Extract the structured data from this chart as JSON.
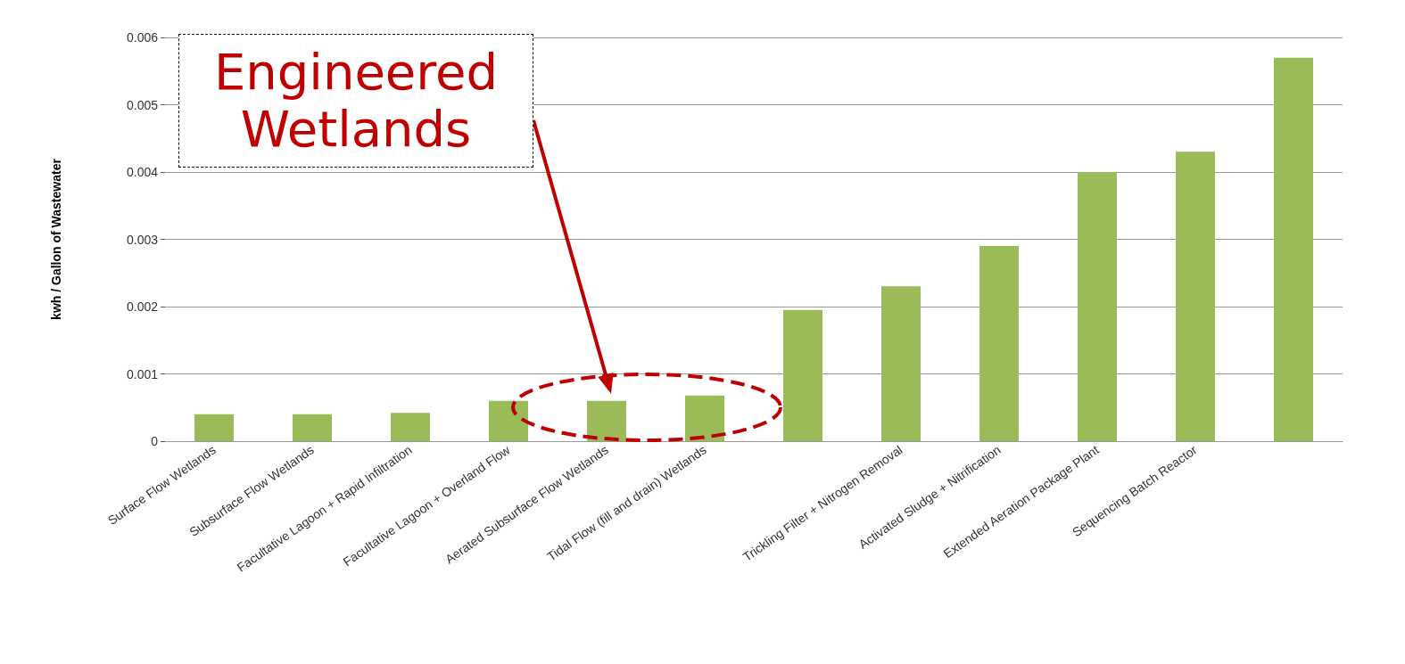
{
  "chart_data": {
    "type": "bar",
    "ylabel": "kwh / Gallon of Wastewater",
    "categories": [
      "Surface Flow Wetlands",
      "Subsurface Flow Wetlands",
      "Facultative Lagoon + Rapid Infiltration",
      "Facultative Lagoon + Overland Flow",
      "Aerated Subsurface Flow Wetlands",
      "Tidal Flow (fill and drain) Wetlands",
      null,
      "Trickling Filter + Nitrogen Removal",
      "Activated Sludge + Nitrification",
      "Extended Aeration Package Plant",
      "Sequencing Batch Reactor",
      null
    ],
    "values": [
      0.0004,
      0.0004,
      0.00042,
      0.0006,
      0.0006,
      0.00068,
      0.00195,
      0.0023,
      0.0029,
      0.004,
      0.0043,
      0.0057
    ],
    "color": "#9bbb59",
    "ylim": [
      0,
      0.006
    ],
    "yticks": [
      0,
      0.001,
      0.002,
      0.003,
      0.004,
      0.005,
      0.006
    ],
    "grid": "y",
    "annotations": [
      "Engineered Wetlands"
    ]
  }
}
